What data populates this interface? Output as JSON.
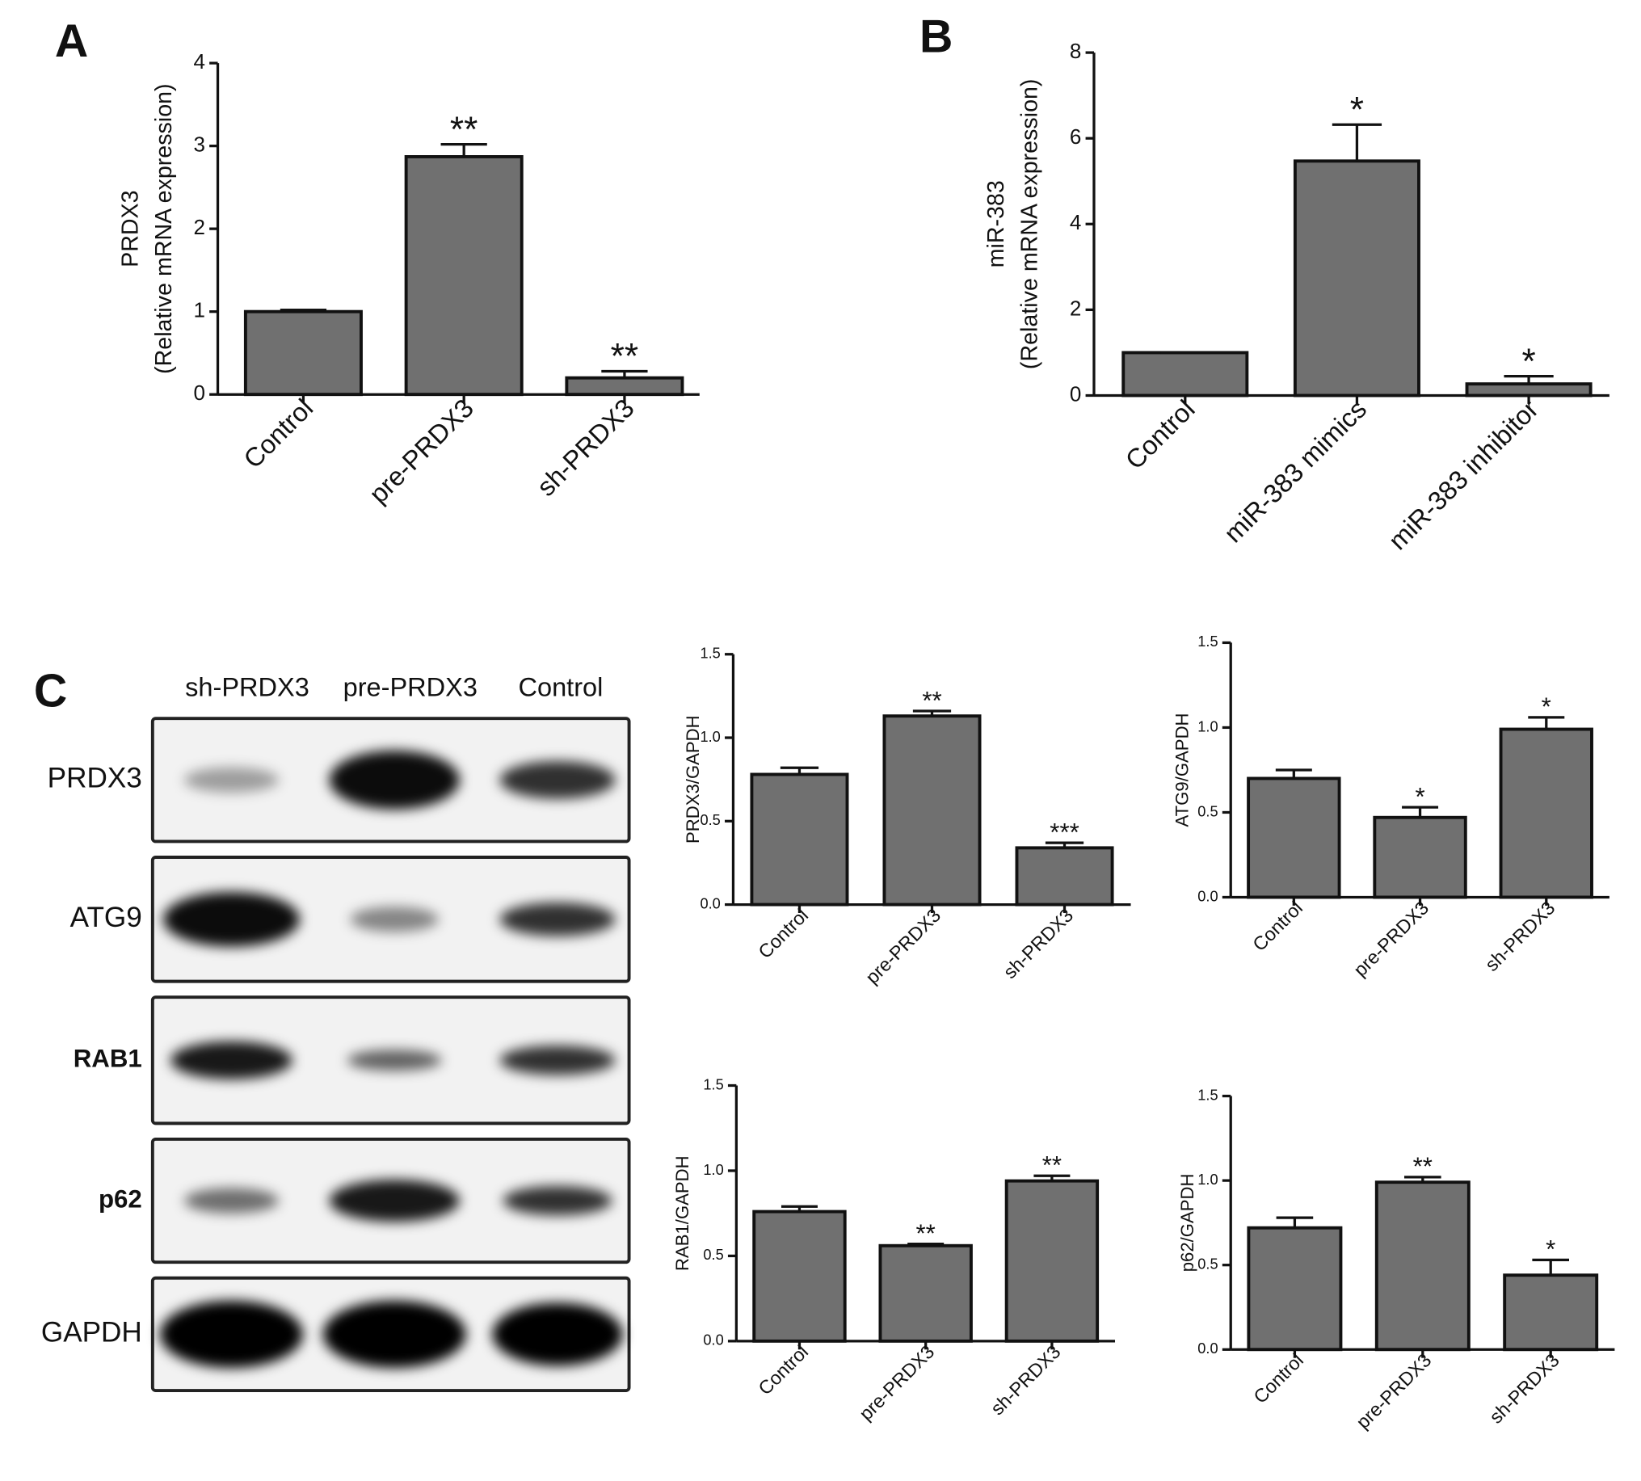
{
  "panels": [
    "A",
    "B",
    "C"
  ],
  "blot": {
    "lanes": [
      "sh-PRDX3",
      "pre-PRDX3",
      "Control"
    ],
    "proteins": [
      "PRDX3",
      "ATG9",
      "RAB1",
      "p62",
      "GAPDH"
    ]
  },
  "chart_data": [
    {
      "type": "bar",
      "ylabel": [
        "PRDX3",
        "(Relative mRNA expression)"
      ],
      "categories": [
        "Control",
        "pre-PRDX3",
        "sh-PRDX3"
      ],
      "values": [
        1.0,
        2.87,
        0.2
      ],
      "errors": [
        0.02,
        0.15,
        0.08
      ],
      "annotations": [
        null,
        "**",
        "**"
      ],
      "color": "#707070",
      "ylim": [
        0,
        4
      ],
      "yticks": [
        0,
        1,
        2,
        3,
        4
      ]
    },
    {
      "type": "bar",
      "ylabel": [
        "miR-383",
        "(Relative mRNA expression)"
      ],
      "categories": [
        "Control",
        "miR-383 mimics",
        "miR-383 inhibitor"
      ],
      "values": [
        1.0,
        5.47,
        0.27
      ],
      "errors": [
        0.0,
        0.85,
        0.18
      ],
      "annotations": [
        null,
        "*",
        "*"
      ],
      "color": "#707070",
      "ylim": [
        0,
        8
      ],
      "yticks": [
        0,
        2,
        4,
        6,
        8
      ]
    },
    {
      "type": "bar",
      "ylabel": [
        "PRDX3/GAPDH"
      ],
      "categories": [
        "Control",
        "pre-PRDX3",
        "sh-PRDX3"
      ],
      "values": [
        0.78,
        1.13,
        0.34
      ],
      "errors": [
        0.04,
        0.03,
        0.03
      ],
      "annotations": [
        null,
        "**",
        "***"
      ],
      "color": "#707070",
      "ylim": [
        0,
        1.5
      ],
      "yticks": [
        {
          "value": 0,
          "label": "0.0"
        },
        0.5,
        {
          "value": 1,
          "label": "1.0"
        },
        1.5
      ]
    },
    {
      "type": "bar",
      "ylabel": [
        "ATG9/GAPDH"
      ],
      "categories": [
        "Control",
        "pre-PRDX3",
        "sh-PRDX3"
      ],
      "values": [
        0.7,
        0.47,
        0.99
      ],
      "errors": [
        0.05,
        0.06,
        0.07
      ],
      "annotations": [
        null,
        "*",
        "*"
      ],
      "color": "#707070",
      "ylim": [
        0,
        1.5
      ],
      "yticks": [
        {
          "value": 0,
          "label": "0.0"
        },
        0.5,
        {
          "value": 1,
          "label": "1.0"
        },
        1.5
      ]
    },
    {
      "type": "bar",
      "ylabel": [
        "RAB1/GAPDH"
      ],
      "categories": [
        "Control",
        "pre-PRDX3",
        "sh-PRDX3"
      ],
      "values": [
        0.76,
        0.56,
        0.94
      ],
      "errors": [
        0.03,
        0.01,
        0.03
      ],
      "annotations": [
        null,
        "**",
        "**"
      ],
      "color": "#707070",
      "ylim": [
        0,
        1.5
      ],
      "yticks": [
        {
          "value": 0,
          "label": "0.0"
        },
        0.5,
        {
          "value": 1,
          "label": "1.0"
        },
        1.5
      ]
    },
    {
      "type": "bar",
      "ylabel": [
        "p62/GAPDH"
      ],
      "categories": [
        "Control",
        "pre-PRDX3",
        "sh-PRDX3"
      ],
      "values": [
        0.72,
        0.99,
        0.44
      ],
      "errors": [
        0.06,
        0.03,
        0.09
      ],
      "annotations": [
        null,
        "**",
        "*"
      ],
      "color": "#707070",
      "ylim": [
        0,
        1.5
      ],
      "yticks": [
        {
          "value": 0,
          "label": "0.0"
        },
        0.5,
        {
          "value": 1,
          "label": "1.0"
        },
        1.5
      ]
    }
  ]
}
